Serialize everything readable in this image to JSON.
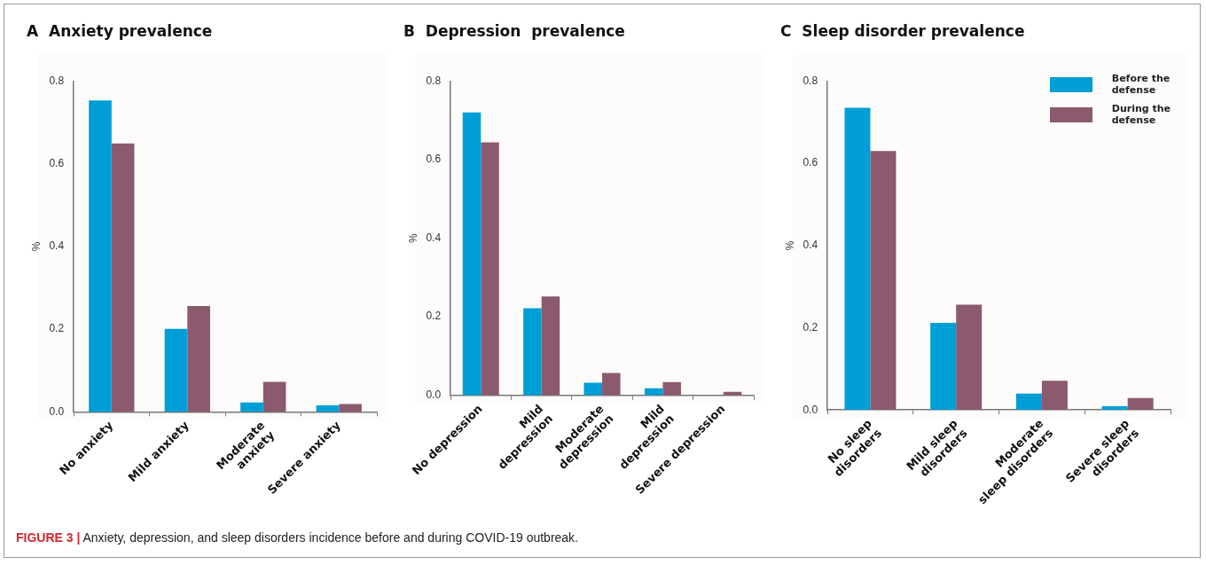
{
  "chart_data": [
    {
      "type": "bar",
      "title": "A  Anxiety prevalence",
      "ylabel": "%",
      "categories": [
        "No anxiety",
        "Mild anxiety",
        "Moderate\nanxiety",
        "Severe anxiety"
      ],
      "series": [
        {
          "color": "#009ed6",
          "values": [
            0.753,
            0.201,
            0.023,
            0.016
          ]
        },
        {
          "color": "#8b5a6e",
          "values": [
            0.649,
            0.256,
            0.073,
            0.019
          ]
        }
      ],
      "ylim": [
        0,
        0.8
      ],
      "yticks": [
        {
          "value": 0,
          "label": "0.0"
        },
        {
          "value": 0.2,
          "label": "0.2"
        },
        {
          "value": 0.4,
          "label": "0.4"
        },
        {
          "value": 0.6,
          "label": "0.6"
        },
        {
          "value": 0.8,
          "label": "0.8"
        }
      ],
      "grid": false,
      "legend": false
    },
    {
      "type": "bar",
      "title": "B  Depression  prevalence",
      "ylabel": "%",
      "categories": [
        "No depression",
        "Mild\ndepression",
        "Moderate\ndepression",
        "Mild\ndepression",
        "Severe depression"
      ],
      "series": [
        {
          "color": "#009ed6",
          "values": [
            0.72,
            0.222,
            0.032,
            0.018,
            0
          ]
        },
        {
          "color": "#8b5a6e",
          "values": [
            0.644,
            0.252,
            0.057,
            0.034,
            0.009
          ]
        }
      ],
      "ylim": [
        0,
        0.8
      ],
      "yticks": [
        {
          "value": 0,
          "label": "0.0"
        },
        {
          "value": 0.2,
          "label": "0.2"
        },
        {
          "value": 0.4,
          "label": "0.4"
        },
        {
          "value": 0.6,
          "label": "0.6"
        },
        {
          "value": 0.8,
          "label": "0.8"
        }
      ],
      "grid": false,
      "legend": false
    },
    {
      "type": "bar",
      "title": "C  Sleep disorder prevalence",
      "ylabel": "%",
      "categories": [
        "No sleep\ndisorders",
        "Mild sleep\ndisorders",
        "Moderate\nsleep disorders",
        "Severe sleep\ndisorders"
      ],
      "series": [
        {
          "name": "Before the\ndefense",
          "color": "#009ed6",
          "values": [
            0.735,
            0.212,
            0.04,
            0.009
          ]
        },
        {
          "name": "During the\ndefense",
          "color": "#8b5a6e",
          "values": [
            0.63,
            0.256,
            0.071,
            0.029
          ]
        }
      ],
      "ylim": [
        0,
        0.8
      ],
      "yticks": [
        {
          "value": 0,
          "label": "0.0"
        },
        {
          "value": 0.2,
          "label": "0.2"
        },
        {
          "value": 0.4,
          "label": "0.4"
        },
        {
          "value": 0.6,
          "label": "0.6"
        },
        {
          "value": 0.8,
          "label": "0.8"
        }
      ],
      "grid": false,
      "legend": "top right",
      "annotations": [
        "FIGURE 3 | Anxiety, depression, and sleep disorders incidence before and during COVID-19 outbreak."
      ]
    }
  ]
}
